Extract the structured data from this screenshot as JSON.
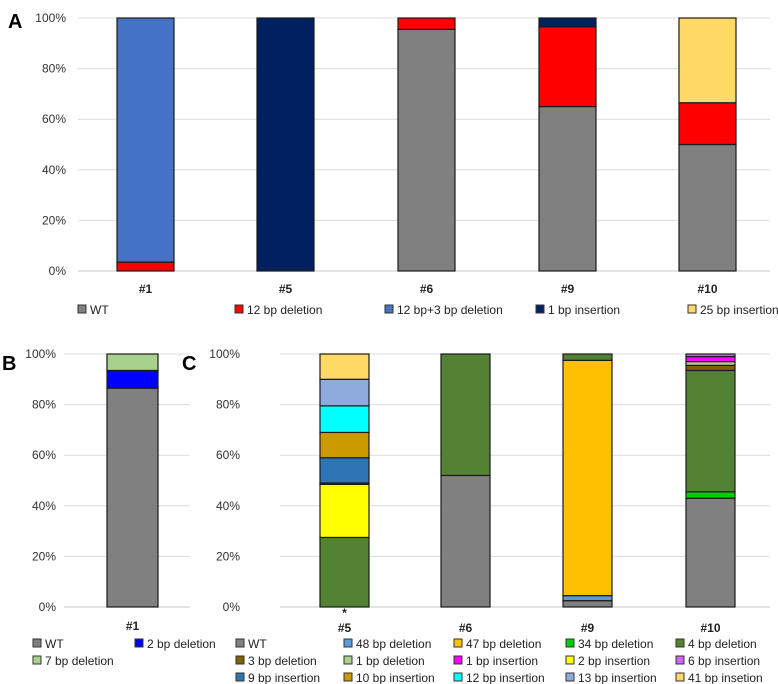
{
  "chart_data": [
    {
      "panel": "A",
      "type": "bar",
      "stacked": true,
      "categories": [
        "#1",
        "#5",
        "#6",
        "#9",
        "#10"
      ],
      "ylim": [
        0,
        100
      ],
      "yticks": [
        "0%",
        "20%",
        "40%",
        "60%",
        "80%",
        "100%"
      ],
      "grid": true,
      "legend_position": "bottom",
      "series": [
        {
          "name": "WT",
          "color": "#808080",
          "values": [
            0,
            0,
            95.5,
            65,
            50
          ]
        },
        {
          "name": "12 bp deletion",
          "color": "#FF0000",
          "values": [
            3.5,
            0,
            4.5,
            31.5,
            16.5
          ]
        },
        {
          "name": "12 bp+3 bp deletion",
          "color": "#4472C4",
          "values": [
            96.5,
            0,
            0,
            0,
            0
          ]
        },
        {
          "name": "1 bp insertion",
          "color": "#002060",
          "values": [
            0,
            100,
            0,
            3.5,
            0
          ]
        },
        {
          "name": "25 bp insertion",
          "color": "#FFD966",
          "values": [
            0,
            0,
            0,
            0,
            33.5
          ]
        }
      ]
    },
    {
      "panel": "B",
      "type": "bar",
      "stacked": true,
      "categories": [
        "#1"
      ],
      "ylim": [
        0,
        100
      ],
      "yticks": [
        "0%",
        "20%",
        "40%",
        "60%",
        "80%",
        "100%"
      ],
      "grid": true,
      "legend_position": "bottom",
      "series": [
        {
          "name": "WT",
          "color": "#808080",
          "values": [
            86.5
          ]
        },
        {
          "name": "2 bp deletion",
          "color": "#0000FF",
          "values": [
            7
          ]
        },
        {
          "name": "7 bp deletion",
          "color": "#A9D18E",
          "values": [
            6.5
          ]
        }
      ]
    },
    {
      "panel": "C",
      "type": "bar",
      "stacked": true,
      "categories": [
        "#5",
        "#6",
        "#9",
        "#10"
      ],
      "annotations": [
        {
          "category": "#5",
          "text": "*"
        }
      ],
      "ylim": [
        0,
        100
      ],
      "yticks": [
        "0%",
        "20%",
        "40%",
        "60%",
        "80%",
        "100%"
      ],
      "grid": true,
      "legend_position": "bottom",
      "series": [
        {
          "name": "WT",
          "color": "#808080",
          "values": [
            0,
            52,
            2.5,
            43
          ]
        },
        {
          "name": "48 bp deletion",
          "color": "#5B9BD5",
          "values": [
            0,
            0,
            2,
            0
          ]
        },
        {
          "name": "47 bp deletion",
          "color": "#FFC000",
          "values": [
            0,
            0,
            93,
            0
          ]
        },
        {
          "name": "34 bp deletion",
          "color": "#00CC00",
          "values": [
            0,
            0,
            0,
            2.5
          ]
        },
        {
          "name": "4 bp deletion",
          "color": "#548235",
          "values": [
            27.5,
            48,
            2.5,
            48
          ]
        },
        {
          "name": "3 bp deletion",
          "color": "#806000",
          "values": [
            0,
            0,
            0,
            2
          ]
        },
        {
          "name": "1 bp deletion",
          "color": "#A9D18E",
          "values": [
            0,
            0,
            0,
            1.5
          ]
        },
        {
          "name": "1 bp insertion",
          "color": "#FF00FF",
          "values": [
            0,
            0,
            0,
            2
          ]
        },
        {
          "name": "2 bp insertion",
          "color": "#FFFF00",
          "values": [
            21,
            0,
            0,
            0
          ]
        },
        {
          "name": "6 bp insertion",
          "color": "#CC66FF",
          "values": [
            0.5,
            0,
            0,
            1
          ]
        },
        {
          "name": "9 bp insertion",
          "color": "#2E75B6",
          "values": [
            10,
            0,
            0,
            0
          ]
        },
        {
          "name": "10 bp insertion",
          "color": "#CC9900",
          "values": [
            10,
            0,
            0,
            0
          ]
        },
        {
          "name": "12 bp insertion",
          "color": "#00FFFF",
          "values": [
            10.5,
            0,
            0,
            0
          ]
        },
        {
          "name": "13 bp insertion",
          "color": "#8FAADC",
          "values": [
            10.5,
            0,
            0,
            0
          ]
        },
        {
          "name": "41 bp insetion",
          "color": "#FFD966",
          "values": [
            10,
            0,
            0,
            0
          ]
        }
      ]
    }
  ]
}
